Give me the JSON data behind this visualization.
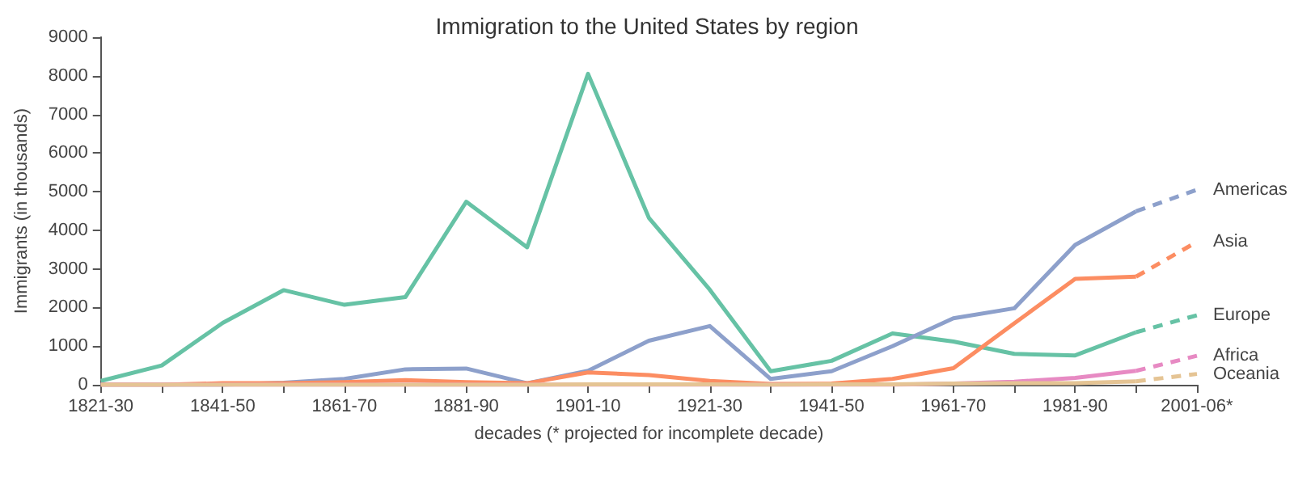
{
  "chart_data": {
    "type": "line",
    "title": "Immigration to the United States by region",
    "xlabel": "decades (* projected for incomplete decade)",
    "ylabel": "Immigrants (in thousands)",
    "categories": [
      "1821-30",
      null,
      "1841-50",
      null,
      "1861-70",
      null,
      "1881-90",
      null,
      "1901-10",
      null,
      "1921-30",
      null,
      "1941-50",
      null,
      "1961-70",
      null,
      "1981-90",
      null,
      "2001-06*"
    ],
    "series": [
      {
        "color": "#66c2a5",
        "line_style": "solid",
        "values": [
          100,
          500,
          1600,
          2450,
          2070,
          2270,
          4740,
          3560,
          8050,
          4320,
          2460,
          350,
          620,
          1330,
          1120,
          800,
          760,
          1360,
          null
        ]
      },
      {
        "name": "Europe",
        "color": "#66c2a5",
        "line_style": "dashed",
        "values": [
          null,
          null,
          null,
          null,
          null,
          null,
          null,
          null,
          null,
          null,
          null,
          null,
          null,
          null,
          null,
          null,
          null,
          1360,
          1800
        ]
      },
      {
        "color": "#8da0cb",
        "line_style": "solid",
        "values": [
          0,
          0,
          0,
          50,
          150,
          400,
          420,
          40,
          360,
          1140,
          1520,
          150,
          350,
          1000,
          1720,
          1980,
          3620,
          4490,
          null
        ]
      },
      {
        "name": "Americas",
        "color": "#8da0cb",
        "line_style": "dashed",
        "values": [
          null,
          null,
          null,
          null,
          null,
          null,
          null,
          null,
          null,
          null,
          null,
          null,
          null,
          null,
          null,
          null,
          null,
          4490,
          5050
        ]
      },
      {
        "color": "#fc8d62",
        "line_style": "solid",
        "values": [
          0,
          0,
          40,
          40,
          70,
          120,
          70,
          40,
          320,
          250,
          100,
          20,
          30,
          150,
          430,
          1590,
          2740,
          2800,
          null
        ]
      },
      {
        "name": "Asia",
        "color": "#fc8d62",
        "line_style": "dashed",
        "values": [
          null,
          null,
          null,
          null,
          null,
          null,
          null,
          null,
          null,
          null,
          null,
          null,
          null,
          null,
          null,
          null,
          null,
          2800,
          3700
        ]
      },
      {
        "color": "#e78ac3",
        "line_style": "solid",
        "values": [
          0,
          0,
          0,
          0,
          0,
          0,
          0,
          0,
          0,
          0,
          0,
          0,
          0,
          0,
          30,
          80,
          180,
          360,
          null
        ]
      },
      {
        "name": "Africa",
        "color": "#e78ac3",
        "line_style": "dashed",
        "values": [
          null,
          null,
          null,
          null,
          null,
          null,
          null,
          null,
          null,
          null,
          null,
          null,
          null,
          null,
          null,
          null,
          null,
          360,
          750
        ]
      },
      {
        "color": "#e5c494",
        "line_style": "solid",
        "values": [
          0,
          0,
          0,
          0,
          0,
          0,
          0,
          0,
          10,
          10,
          10,
          0,
          10,
          10,
          30,
          40,
          40,
          90,
          null
        ]
      },
      {
        "name": "Oceania",
        "color": "#e5c494",
        "line_style": "dashed",
        "values": [
          null,
          null,
          null,
          null,
          null,
          null,
          null,
          null,
          null,
          null,
          null,
          null,
          null,
          null,
          null,
          null,
          null,
          90,
          280
        ]
      }
    ],
    "ylim": [
      0,
      9000
    ],
    "yticks": [
      0,
      1000,
      2000,
      3000,
      4000,
      5000,
      6000,
      7000,
      8000,
      9000
    ],
    "grid": false,
    "legend": false,
    "marker": "none"
  }
}
